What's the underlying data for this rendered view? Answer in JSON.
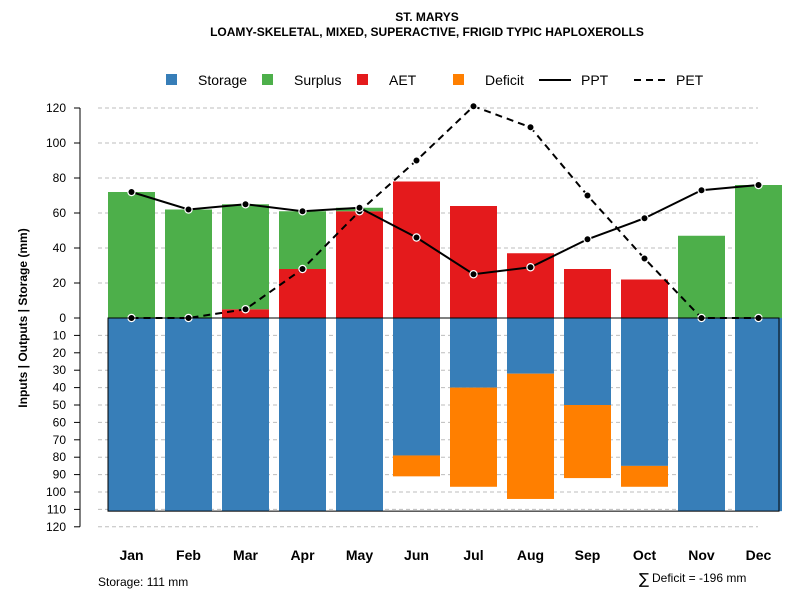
{
  "chart_data": {
    "type": "bar",
    "title": "ST. MARYS",
    "subtitle": "LOAMY-SKELETAL, MIXED, SUPERACTIVE, FRIGID TYPIC HAPLOXEROLLS",
    "ylabel": "Inputs | Outputs | Storage    (mm)",
    "categories": [
      "Jan",
      "Feb",
      "Mar",
      "Apr",
      "May",
      "Jun",
      "Jul",
      "Aug",
      "Sep",
      "Oct",
      "Nov",
      "Dec"
    ],
    "upper_ticks": [
      "0",
      "20",
      "40",
      "60",
      "80",
      "100",
      "120"
    ],
    "lower_ticks": [
      "10",
      "20",
      "30",
      "40",
      "50",
      "60",
      "70",
      "80",
      "90",
      "100",
      "110",
      "120"
    ],
    "upper_tick_values": [
      0,
      20,
      40,
      60,
      80,
      100,
      120
    ],
    "lower_tick_values": [
      10,
      20,
      30,
      40,
      50,
      60,
      70,
      80,
      90,
      100,
      110,
      120
    ],
    "ylim_upper": [
      0,
      120
    ],
    "ylim_lower": [
      0,
      120
    ],
    "series": [
      {
        "name": "Storage",
        "color": "#377EB8",
        "values": [
          111,
          111,
          111,
          111,
          111,
          79,
          40,
          32,
          50,
          85,
          111,
          111
        ]
      },
      {
        "name": "Surplus",
        "color": "#4DAF4A",
        "values": [
          72,
          62,
          60,
          33,
          2,
          0,
          0,
          0,
          0,
          0,
          47,
          76
        ]
      },
      {
        "name": "AET",
        "color": "#E41A1C",
        "values": [
          0,
          0,
          5,
          28,
          61,
          78,
          64,
          37,
          28,
          22,
          0,
          0
        ]
      },
      {
        "name": "Deficit",
        "color": "#FF7F00",
        "values": [
          0,
          0,
          0,
          0,
          0,
          12,
          57,
          72,
          42,
          12,
          0,
          0
        ]
      },
      {
        "name": "PPT",
        "style": "solid",
        "values": [
          72,
          62,
          65,
          61,
          63,
          46,
          25,
          29,
          45,
          57,
          73,
          76
        ]
      },
      {
        "name": "PET",
        "style": "dashed",
        "values": [
          0,
          0,
          5,
          28,
          61,
          90,
          121,
          109,
          70,
          34,
          0,
          0
        ]
      }
    ],
    "legend": {
      "position": "top",
      "labels": [
        "Storage",
        "Surplus",
        "AET",
        "Deficit",
        "PPT",
        "PET"
      ]
    },
    "storage_note": "Storage: 111 mm",
    "deficit_symbol": "∑",
    "deficit_note": "Deficit = -196 mm",
    "grid": true
  }
}
